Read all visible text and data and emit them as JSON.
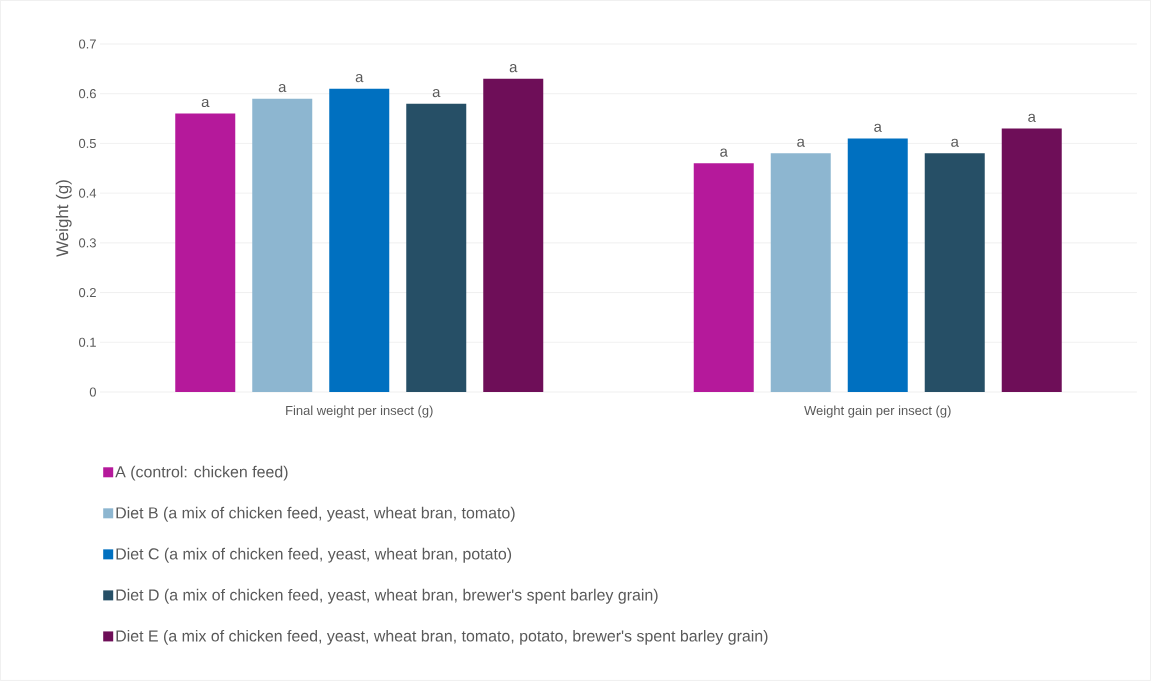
{
  "chart_data": {
    "type": "bar",
    "ylabel": "Weight (g)",
    "categories": [
      "Final weight per insect (g)",
      "Weight gain per insect (g)"
    ],
    "series": [
      {
        "name": "A (control: chicken feed)",
        "color": "#b5199b",
        "values": [
          0.56,
          0.46
        ]
      },
      {
        "name": "Diet B (a mix of chicken feed, yeast, wheat bran, tomato)",
        "color": "#8db6d0",
        "values": [
          0.59,
          0.48
        ]
      },
      {
        "name": "Diet C (a mix of chicken feed, yeast, wheat bran, potato)",
        "color": "#0070c0",
        "values": [
          0.61,
          0.51
        ]
      },
      {
        "name": "Diet D (a mix of chicken feed, yeast, wheat bran, brewer's spent barley grain)",
        "color": "#264f66",
        "values": [
          0.58,
          0.48
        ]
      },
      {
        "name": "Diet E (a mix of chicken feed, yeast, wheat bran, tomato, potato, brewer's spent barley grain)",
        "color": "#6e0e58",
        "values": [
          0.63,
          0.53
        ]
      }
    ],
    "ylim": [
      0,
      0.7
    ],
    "yticks": [
      0,
      0.1,
      0.2,
      0.3,
      0.4,
      0.5,
      0.6,
      0.7
    ],
    "grid": "y",
    "legend": "bottom",
    "annotations": [
      "a",
      "a",
      "a",
      "a",
      "a",
      "a",
      "a",
      "a",
      "a",
      "a"
    ]
  }
}
